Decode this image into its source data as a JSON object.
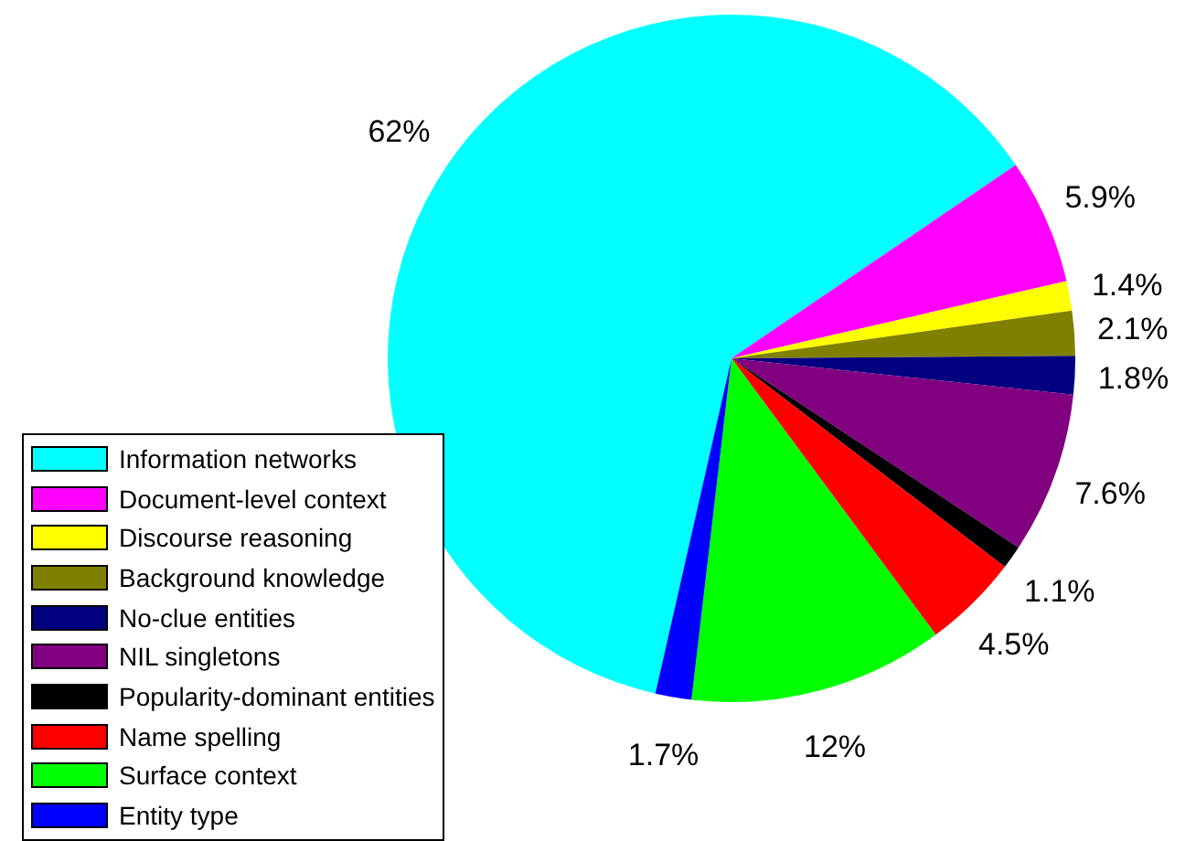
{
  "chart_data": {
    "type": "pie",
    "categories": [
      "Information networks",
      "Document-level context",
      "Discourse reasoning",
      "Background knowledge",
      "No-clue entities",
      "NIL singletons",
      "Popularity-dominant entities",
      "Name spelling",
      "Surface context",
      "Entity type"
    ],
    "values": [
      62,
      5.9,
      1.4,
      2.1,
      1.8,
      7.6,
      1.1,
      4.5,
      12,
      1.7
    ],
    "value_labels": [
      "62%",
      "5.9%",
      "1.4%",
      "2.1%",
      "1.8%",
      "7.6%",
      "1.1%",
      "4.5%",
      "12%",
      "1.7%"
    ],
    "colors": [
      "#00ffff",
      "#ff00ff",
      "#ffff00",
      "#808000",
      "#000080",
      "#800080",
      "#000000",
      "#ff0000",
      "#00ff00",
      "#0000ff"
    ],
    "legend": "bottom left"
  }
}
